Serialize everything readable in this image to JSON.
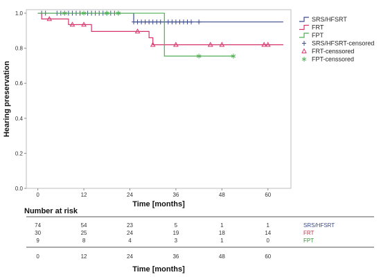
{
  "chart_data": {
    "type": "line",
    "subtype": "kaplan-meier",
    "xlabel": "Time [months]",
    "ylabel": "Hearing preservation",
    "xlim": [
      -3,
      66
    ],
    "ylim": [
      0,
      1.02
    ],
    "x_ticks": [
      0,
      12,
      24,
      36,
      48,
      60
    ],
    "y_ticks": [
      0.0,
      0.2,
      0.4,
      0.6,
      0.8,
      1.0
    ],
    "y_tick_labels": [
      "0.0",
      "0.2",
      "0.4",
      "0.6",
      "0.8",
      "1.0"
    ],
    "grid": false,
    "legend_position": "right",
    "legend": [
      {
        "label": "SRS/HFSRT",
        "kind": "line",
        "color": "#3b4a8c"
      },
      {
        "label": "FRT",
        "kind": "line",
        "color": "#d6336c"
      },
      {
        "label": "FPT",
        "kind": "line",
        "color": "#4caf50"
      },
      {
        "label": "SRS/HFSRT-censored",
        "kind": "plus",
        "color": "#3b4a8c"
      },
      {
        "label": "FRT-censsored",
        "kind": "triangle",
        "color": "#d6336c"
      },
      {
        "label": "FPT-censsored",
        "kind": "star",
        "color": "#4caf50"
      }
    ],
    "series": [
      {
        "name": "SRS/HFSRT",
        "color": "#3b4a8c",
        "steps": [
          [
            0,
            1.0
          ],
          [
            25,
            0.95
          ],
          [
            64,
            0.95
          ]
        ],
        "censored": [
          1,
          2,
          5,
          6,
          7,
          8,
          9,
          10,
          11,
          13,
          14,
          15,
          16,
          17,
          18,
          19,
          20,
          21,
          25,
          26,
          27,
          28,
          29,
          30,
          31,
          32,
          33,
          34,
          35,
          36,
          37,
          38,
          39,
          40,
          42
        ],
        "censor_marker": "plus"
      },
      {
        "name": "FRT",
        "color": "#d6336c",
        "steps": [
          [
            0,
            1.0
          ],
          [
            1,
            0.967
          ],
          [
            8,
            0.935
          ],
          [
            14,
            0.896
          ],
          [
            29,
            0.86
          ],
          [
            30,
            0.82
          ],
          [
            64,
            0.82
          ]
        ],
        "censored": [
          3,
          9,
          12,
          26,
          30,
          36,
          45,
          48,
          59,
          60
        ],
        "censor_marker": "triangle"
      },
      {
        "name": "FPT",
        "color": "#4caf50",
        "steps": [
          [
            0,
            1.0
          ],
          [
            33,
            0.755
          ],
          [
            51,
            0.755
          ]
        ],
        "censored": [
          7,
          12,
          18,
          21,
          42,
          51
        ],
        "censor_marker": "star"
      }
    ],
    "risk_table": {
      "title": "Number at risk",
      "times": [
        0,
        12,
        24,
        36,
        48,
        60
      ],
      "rows": [
        {
          "label": "SRS/HFSRT",
          "color": "#3b4a8c",
          "values": [
            74,
            54,
            23,
            5,
            1,
            1
          ]
        },
        {
          "label": "FRT",
          "color": "#c0304a",
          "values": [
            30,
            25,
            24,
            19,
            18,
            14
          ]
        },
        {
          "label": "FPT",
          "color": "#3a8f3a",
          "values": [
            9,
            8,
            4,
            3,
            1,
            0
          ]
        }
      ],
      "xlabel": "Time [months]"
    }
  }
}
